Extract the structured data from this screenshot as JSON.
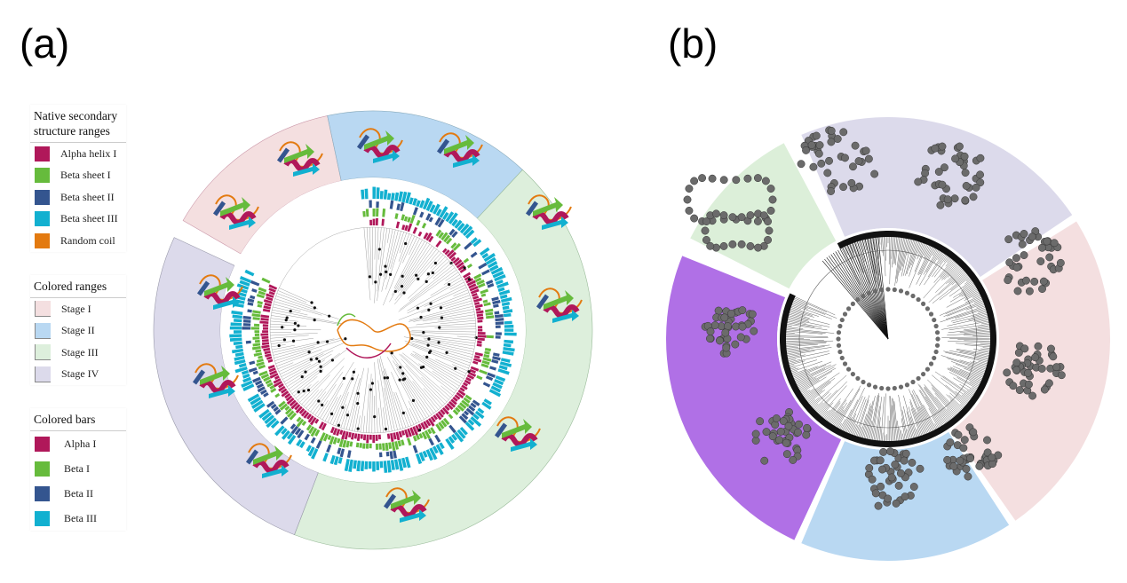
{
  "panels": {
    "a": "(a)",
    "b": "(b)"
  },
  "legend_native": {
    "title": "Native secondary structure ranges",
    "items": [
      {
        "label": "Alpha helix I",
        "color": "#b0185a"
      },
      {
        "label": "Beta sheet I",
        "color": "#66bb3c"
      },
      {
        "label": "Beta sheet II",
        "color": "#34558f"
      },
      {
        "label": "Beta sheet III",
        "color": "#12b0d0"
      },
      {
        "label": "Random coil",
        "color": "#e37a10"
      }
    ]
  },
  "legend_ranges": {
    "title": "Colored ranges",
    "items": [
      {
        "label": "Stage I",
        "color": "#f4dfe0"
      },
      {
        "label": "Stage II",
        "color": "#b9d8f2"
      },
      {
        "label": "Stage III",
        "color": "#ddefdc"
      },
      {
        "label": "Stage IV",
        "color": "#dcdaeb"
      }
    ]
  },
  "legend_bars": {
    "title": "Colored bars",
    "items": [
      {
        "label": "Alpha I",
        "color": "#b0185a"
      },
      {
        "label": "Beta I",
        "color": "#66bb3c"
      },
      {
        "label": "Beta II",
        "color": "#34558f"
      },
      {
        "label": "Beta III",
        "color": "#12b0d0"
      }
    ]
  },
  "panel_b_colors": {
    "stage_green": "#dcefd9",
    "stage_lavender": "#dcdaeb",
    "stage_pink": "#f4dfe0",
    "stage_blue": "#b9d8f2",
    "stage_purple": "#b070e6",
    "atom": "#6b6b6b"
  }
}
